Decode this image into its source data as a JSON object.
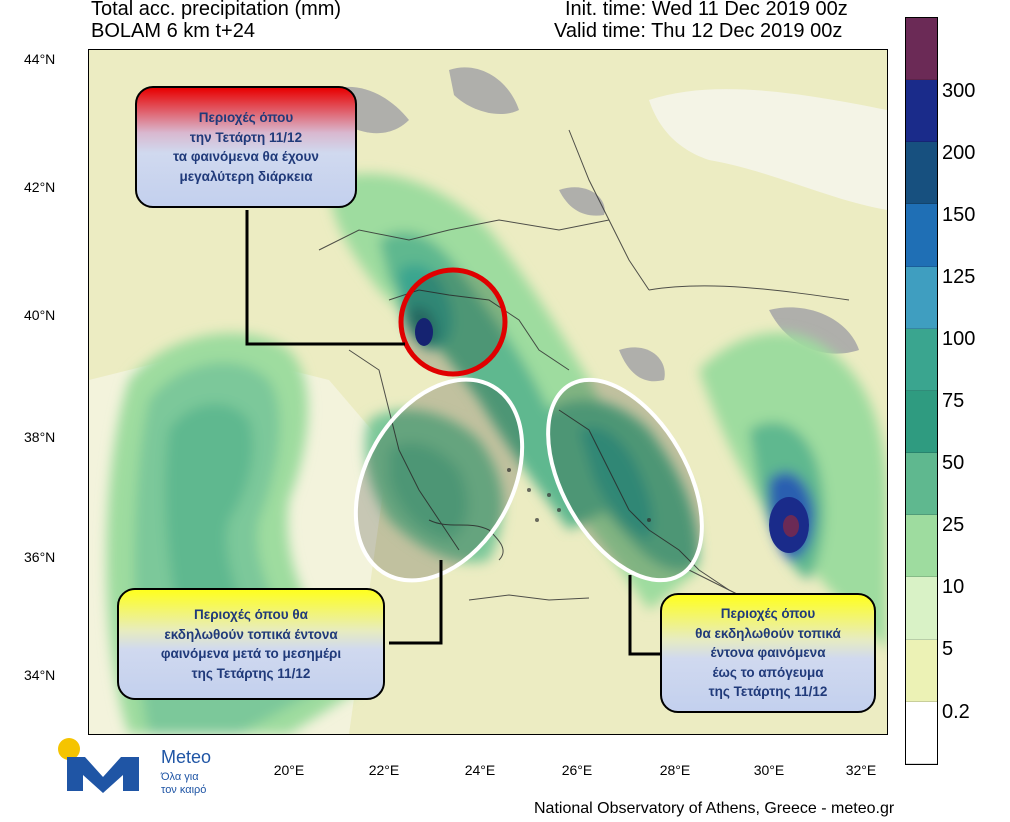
{
  "header": {
    "title_line1": "Total acc. precipitation (mm)",
    "title_line2": "BOLAM 6 km t+24",
    "init_time": "Init. time: Wed 11 Dec 2019 00z",
    "valid_time": "Valid time: Thu 12 Dec 2019 00z"
  },
  "map": {
    "lat_ticks": [
      "44°N",
      "42°N",
      "40°N",
      "38°N",
      "36°N",
      "34°N"
    ],
    "lon_ticks": [
      "20°E",
      "22°E",
      "24°E",
      "26°E",
      "28°E",
      "30°E",
      "32°E"
    ],
    "colors": {
      "land_dry": "#ececc2",
      "sea_dry": "#f3f3dc",
      "terrain_mask": "#a9a9a9",
      "light_green": "#b9e6b0",
      "mid_green": "#7cc89a",
      "teal": "#4fa58c",
      "dark_teal": "#2f7f76",
      "blue": "#2a5fb0",
      "navy": "#1a2b8a",
      "maroon": "#6b2a56",
      "border_line": "#333333",
      "highlight_red": "#e00000",
      "highlight_white": "#ffffff"
    }
  },
  "callouts": {
    "top_left": {
      "lines": [
        "Περιοχές όπου",
        "την Τετάρτη 11/12",
        "τα φαινόμενα θα έχουν",
        "μεγαλύτερη διάρκεια"
      ]
    },
    "bottom_left": {
      "lines": [
        "Περιοχές όπου θα",
        "εκδηλωθούν τοπικά  έντονα",
        "φαινόμενα μετά το μεσημέρι",
        "της Τετάρτης 11/12"
      ]
    },
    "bottom_right": {
      "lines": [
        "Περιοχές όπου",
        "θα εκδηλωθούν τοπικά",
        "έντονα φαινόμενα",
        "έως το απόγευμα",
        "της Τετάρτης 11/12"
      ]
    }
  },
  "colorbar": {
    "labels": [
      "300",
      "200",
      "150",
      "125",
      "100",
      "75",
      "50",
      "25",
      "10",
      "5",
      "0.2"
    ],
    "colors": [
      "#6b2a56",
      "#1a2b8a",
      "#17507f",
      "#1f6fb5",
      "#3f9ec0",
      "#3aa58f",
      "#2f9b80",
      "#5fb88f",
      "#9edc9f",
      "#d9f2c6",
      "#ecf2b5",
      "#ffffff"
    ]
  },
  "logo": {
    "name": "Meteo",
    "tagline_line1": "Όλα για",
    "tagline_line2": "τον καιρό",
    "colors": {
      "blue": "#1f55a5",
      "yellow": "#f5c400"
    }
  },
  "footer": "National Observatory of Athens, Greece - meteo.gr"
}
